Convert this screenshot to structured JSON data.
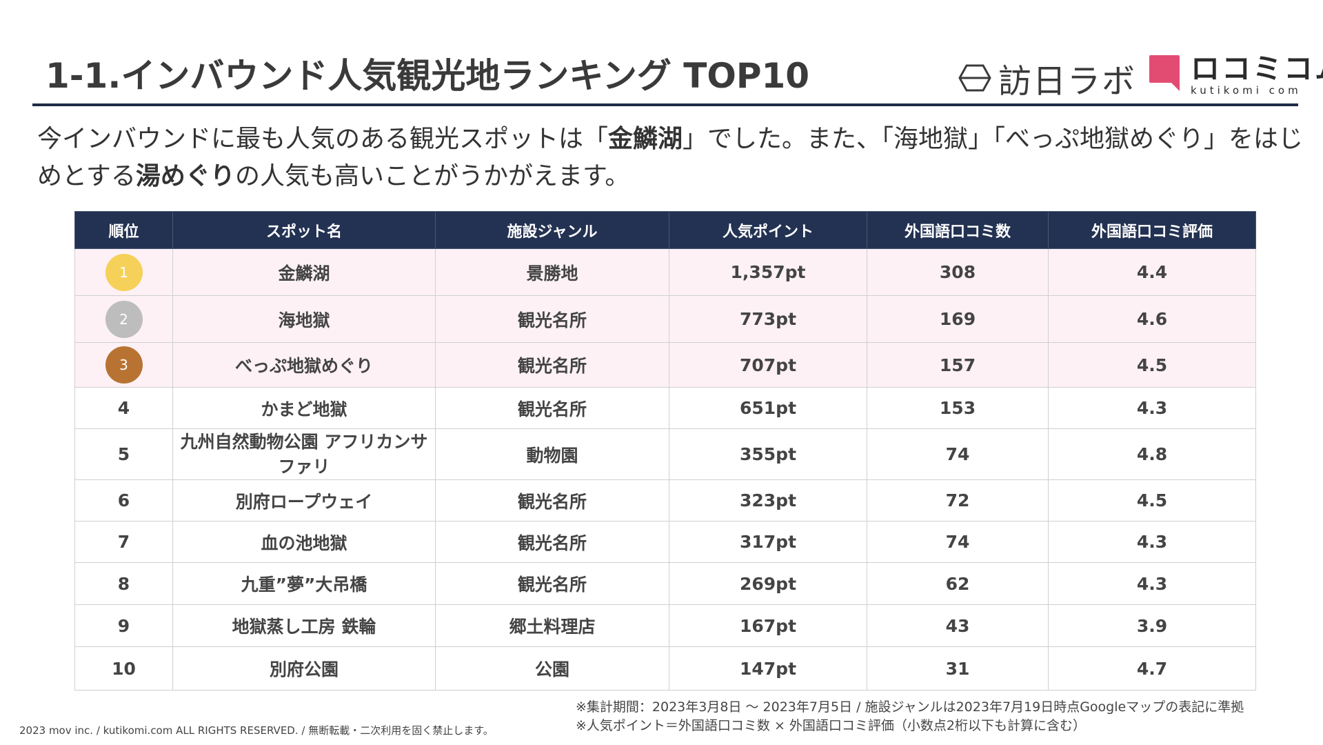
{
  "title": "1-1.インバウンド人気観光地ランキング TOP10",
  "logos": {
    "houjin": "訪日ラボ",
    "kutikomi_main": "ロコミコム",
    "kutikomi_sub": "kutikomi com"
  },
  "lead": {
    "part1": "今インバウンドに最も人気のある観光スポットは「",
    "highlight1": "金鱗湖",
    "part2": "」でした。また、「海地獄」「べっぷ地獄めぐり」をはじめとする",
    "highlight2": "湯めぐり",
    "part3": "の人気も高いことがうかがえます。"
  },
  "colors": {
    "header_bg": "#233252",
    "highlight_row": "#fdf1f5",
    "gold": "#f6d15a",
    "silver": "#bdbdbd",
    "bronze": "#b87333"
  },
  "table": {
    "headers": [
      "順位",
      "スポット名",
      "施設ジャンル",
      "人気ポイント",
      "外国語口コミ数",
      "外国語口コミ評価"
    ],
    "rows": [
      {
        "rank": "1",
        "name": "金鱗湖",
        "genre": "景勝地",
        "points": "1,357pt",
        "reviews": "308",
        "rating": "4.4"
      },
      {
        "rank": "2",
        "name": "海地獄",
        "genre": "観光名所",
        "points": "773pt",
        "reviews": "169",
        "rating": "4.6"
      },
      {
        "rank": "3",
        "name": "べっぷ地獄めぐり",
        "genre": "観光名所",
        "points": "707pt",
        "reviews": "157",
        "rating": "4.5"
      },
      {
        "rank": "4",
        "name": "かまど地獄",
        "genre": "観光名所",
        "points": "651pt",
        "reviews": "153",
        "rating": "4.3"
      },
      {
        "rank": "5",
        "name": "九州自然動物公園 アフリカンサファリ",
        "genre": "動物園",
        "points": "355pt",
        "reviews": "74",
        "rating": "4.8"
      },
      {
        "rank": "6",
        "name": "別府ロープウェイ",
        "genre": "観光名所",
        "points": "323pt",
        "reviews": "72",
        "rating": "4.5"
      },
      {
        "rank": "7",
        "name": "血の池地獄",
        "genre": "観光名所",
        "points": "317pt",
        "reviews": "74",
        "rating": "4.3"
      },
      {
        "rank": "8",
        "name": "九重”夢”大吊橋",
        "genre": "観光名所",
        "points": "269pt",
        "reviews": "62",
        "rating": "4.3"
      },
      {
        "rank": "9",
        "name": "地獄蒸し工房 鉄輪",
        "genre": "郷土料理店",
        "points": "167pt",
        "reviews": "43",
        "rating": "3.9"
      },
      {
        "rank": "10",
        "name": "別府公園",
        "genre": "公園",
        "points": "147pt",
        "reviews": "31",
        "rating": "4.7"
      }
    ]
  },
  "notes": {
    "line1": "※集計期間：2023年3月8日 〜 2023年7月5日 / 施設ジャンルは2023年7月19日時点Googleマップの表記に準拠",
    "line2": "※人気ポイント＝外国語口コミ数 × 外国語口コミ評価（小数点2桁以下も計算に含む）"
  },
  "copyright": "2023 mov inc. / kutikomi.com ALL RIGHTS RESERVED. / 無断転載・二次利用を固く禁止します。"
}
